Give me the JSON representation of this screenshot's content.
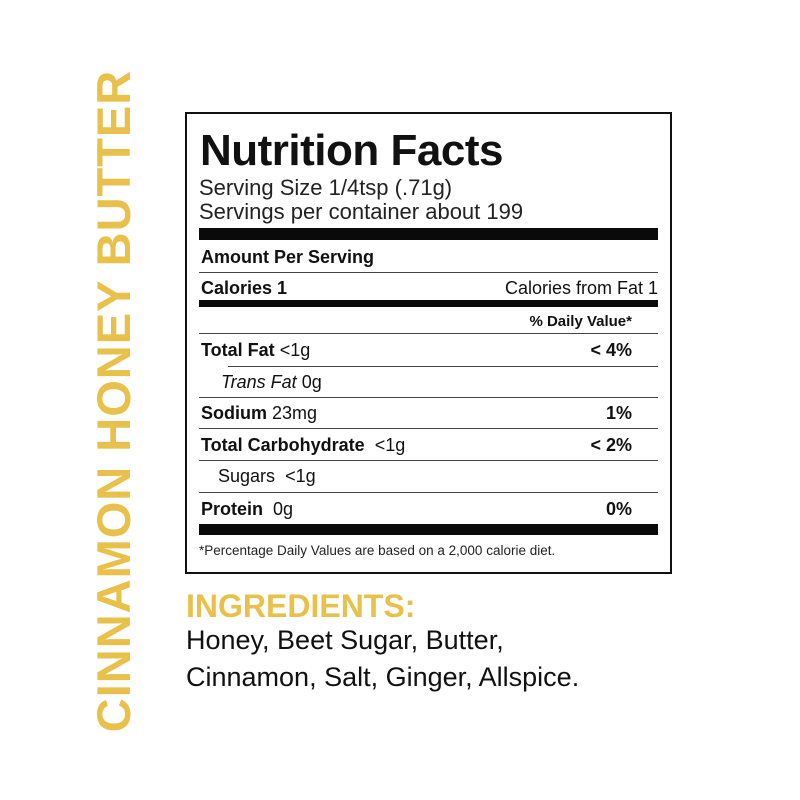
{
  "product_name": "CINNAMON HONEY BUTTER",
  "brand_color": "#E8C04A",
  "nutrition": {
    "title": "Nutrition Facts",
    "serving_size": "Serving Size 1/4tsp (.71g)",
    "servings_per_container": "Servings per container about 199",
    "amount_per_serving": "Amount Per Serving",
    "calories": "Calories 1",
    "calories_from_fat": "Calories from Fat 1",
    "daily_value_header": "% Daily Value*",
    "rows": [
      {
        "name": "Total Fat",
        "amount": "<1g",
        "dv": "< 4%"
      },
      {
        "name": "Trans Fat",
        "amount": "0g",
        "dv": ""
      },
      {
        "name": "Sodium",
        "amount": "23mg",
        "dv": "1%"
      },
      {
        "name": "Total Carbohydrate",
        "amount": "<1g",
        "dv": "< 2%"
      },
      {
        "name": "Sugars",
        "amount": "<1g",
        "dv": ""
      },
      {
        "name": "Protein",
        "amount": "0g",
        "dv": "0%"
      }
    ],
    "footnote": "*Percentage Daily Values are based on a 2,000 calorie diet."
  },
  "ingredients": {
    "heading": "INGREDIENTS:",
    "lines": [
      "Honey, Beet Sugar, Butter,",
      "Cinnamon, Salt, Ginger, Allspice."
    ]
  }
}
